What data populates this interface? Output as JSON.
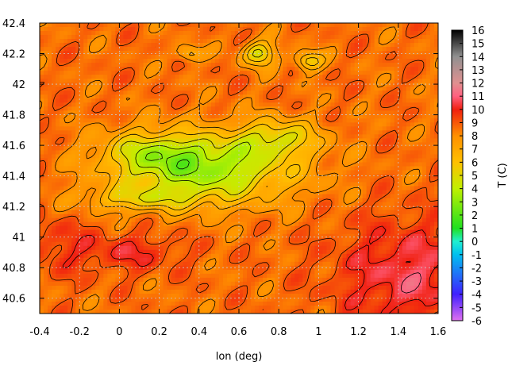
{
  "chart_data": {
    "type": "heatmap",
    "xlabel": "lon (deg)",
    "ylabel": "",
    "colorbar_label": "T (C)",
    "xlim": [
      -0.4,
      1.6
    ],
    "ylim": [
      40.5,
      42.4
    ],
    "x_ticks": [
      "-0.4",
      "-0.2",
      "0",
      "0.2",
      "0.4",
      "0.6",
      "0.8",
      "1",
      "1.2",
      "1.4",
      "1.6"
    ],
    "y_ticks": [
      "40.6",
      "40.8",
      "41",
      "41.2",
      "41.4",
      "41.6",
      "41.8",
      "42",
      "42.2",
      "42.4"
    ],
    "colorbar_range": [
      -6,
      16
    ],
    "colorbar_ticks": [
      "-6",
      "-5",
      "-4",
      "-3",
      "-2",
      "-1",
      "0",
      "1",
      "2",
      "3",
      "4",
      "5",
      "6",
      "7",
      "8",
      "9",
      "10",
      "11",
      "12",
      "13",
      "14",
      "15",
      "16"
    ],
    "grid": true,
    "legend": "none",
    "contours": true,
    "field_description": "temperature field over NE Iberia; cool band (0 to 4 C) from lon 0.0 to 1.0 near lat 41.2 to 41.8, warm (8 to 11 C) in the south-east coast and south-west"
  }
}
